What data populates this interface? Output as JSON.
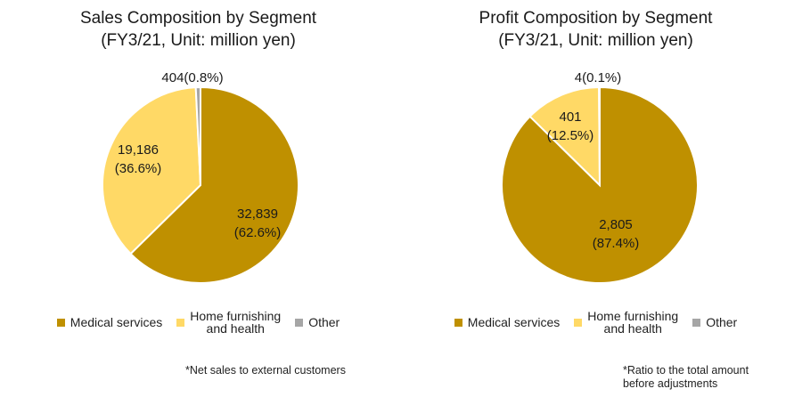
{
  "colors": {
    "medical": "#BF9000",
    "home": "#FFD966",
    "other": "#A6A6A6"
  },
  "chart_data": [
    {
      "type": "pie",
      "title": "Sales Composition by Segment",
      "subtitle": "(FY3/21, Unit: million yen)",
      "slices": [
        {
          "name": "Medical services",
          "value": 32839,
          "percent": 62.6,
          "value_label": "32,839",
          "percent_label": "(62.6%)"
        },
        {
          "name": "Home furnishing and health",
          "value": 19186,
          "percent": 36.6,
          "value_label": "19,186",
          "percent_label": "(36.6%)"
        },
        {
          "name": "Other",
          "value": 404,
          "percent": 0.8,
          "value_label": "404",
          "percent_label": "(0.8%)"
        }
      ],
      "legend": [
        "Medical services",
        "Home furnishing\nand health",
        "Other"
      ],
      "legend_position": "bottom",
      "footnote": "*Net sales to external customers"
    },
    {
      "type": "pie",
      "title": "Profit Composition by Segment",
      "subtitle": "(FY3/21, Unit: million yen)",
      "slices": [
        {
          "name": "Medical services",
          "value": 2805,
          "percent": 87.4,
          "value_label": "2,805",
          "percent_label": "(87.4%)"
        },
        {
          "name": "Home furnishing and health",
          "value": 401,
          "percent": 12.5,
          "value_label": "401",
          "percent_label": "(12.5%)"
        },
        {
          "name": "Other",
          "value": 4,
          "percent": 0.1,
          "value_label": "4",
          "percent_label": "(0.1%)"
        }
      ],
      "legend": [
        "Medical services",
        "Home furnishing\nand health",
        "Other"
      ],
      "legend_position": "bottom",
      "footnote": "*Ratio to the total amount\n  before adjustments"
    }
  ]
}
